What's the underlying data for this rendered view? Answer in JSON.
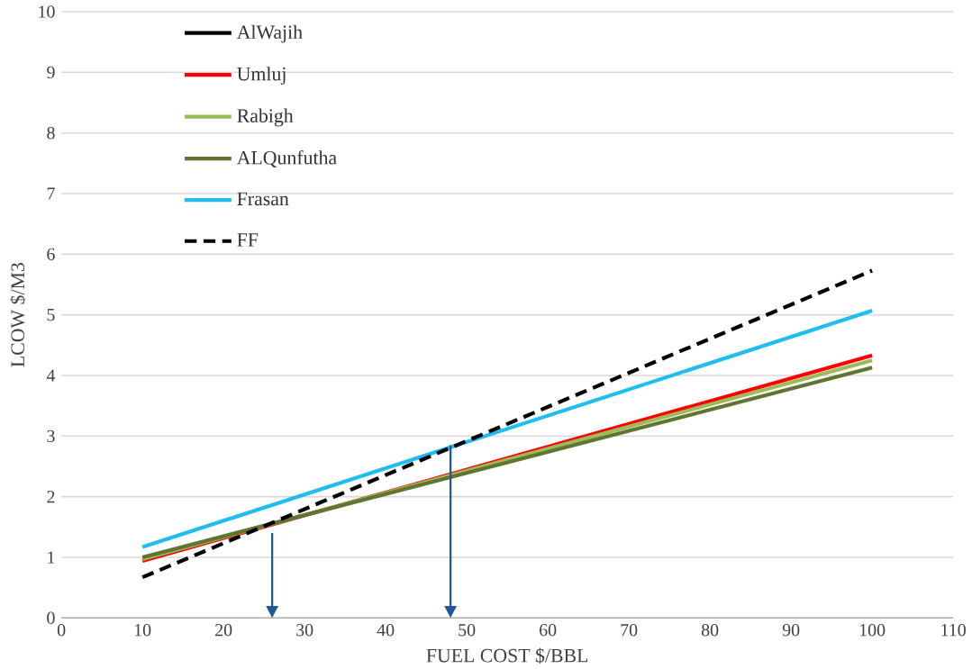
{
  "chart_data": {
    "type": "line",
    "xlabel": "FUEL COST $/BBL",
    "ylabel": "LCOW $/M3",
    "xlim": [
      0,
      110
    ],
    "xticks": [
      0,
      10,
      20,
      30,
      40,
      50,
      60,
      70,
      80,
      90,
      100,
      110
    ],
    "ylim": [
      0,
      10
    ],
    "yticks": [
      0,
      1,
      2,
      3,
      4,
      5,
      6,
      7,
      8,
      9,
      10
    ],
    "grid": "y",
    "legend": "top left",
    "marker": "none",
    "x": [
      10,
      100
    ],
    "series": [
      {
        "name": "AlWajih",
        "color": "#000000",
        "values": [
          null,
          null
        ]
      },
      {
        "name": "Umluj",
        "color": "#ff0000",
        "values": [
          0.94,
          4.33
        ]
      },
      {
        "name": "Rabigh",
        "color": "#9bbb59",
        "values": [
          0.97,
          4.25
        ]
      },
      {
        "name": "ALQunfutha",
        "color": "#5f7530",
        "values": [
          1.0,
          4.13
        ]
      },
      {
        "name": "Frasan",
        "color": "#1fbdf0",
        "values": [
          1.17,
          5.07
        ]
      },
      {
        "name": "FF",
        "color": "#000000",
        "values": [
          0.67,
          5.73
        ],
        "line_style": "dashed"
      }
    ]
  }
}
